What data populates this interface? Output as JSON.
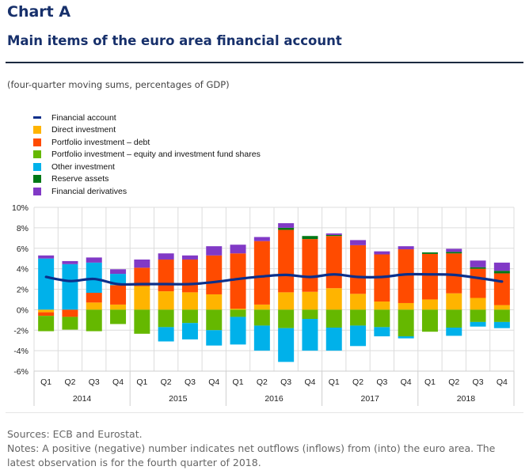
{
  "header": {
    "title": "Chart A",
    "subtitle": "Main items of the euro area financial account",
    "units": "(four-quarter moving sums, percentages of GDP)"
  },
  "footer": {
    "sources": "Sources: ECB and Eurostat.",
    "notes": "Notes: A positive (negative) number indicates net outflows (inflows) from (into) the euro area. The latest observation is for the fourth quarter of 2018."
  },
  "chart_data": {
    "type": "bar",
    "stacked": true,
    "title": "Main items of the euro area financial account",
    "ylabel": "",
    "xlabel": "",
    "ylim": [
      -6,
      10
    ],
    "yticks": [
      -6,
      -4,
      -2,
      0,
      2,
      4,
      6,
      8,
      10
    ],
    "ytick_labels": [
      "-6%",
      "-4%",
      "-2%",
      "0%",
      "2%",
      "4%",
      "6%",
      "8%",
      "10%"
    ],
    "grid": true,
    "legend_position": "top-left",
    "categories": [
      "Q1",
      "Q2",
      "Q3",
      "Q4",
      "Q1",
      "Q2",
      "Q3",
      "Q4",
      "Q1",
      "Q2",
      "Q3",
      "Q4",
      "Q1",
      "Q2",
      "Q3",
      "Q4",
      "Q1",
      "Q2",
      "Q3",
      "Q4"
    ],
    "years": [
      {
        "label": "2014",
        "quarters": 4
      },
      {
        "label": "2015",
        "quarters": 4
      },
      {
        "label": "2016",
        "quarters": 4
      },
      {
        "label": "2017",
        "quarters": 4
      },
      {
        "label": "2018",
        "quarters": 4
      }
    ],
    "series": [
      {
        "name": "Financial account",
        "kind": "line",
        "color": "#0b2f8a",
        "values": [
          3.2,
          2.8,
          3.0,
          2.5,
          2.5,
          2.5,
          2.5,
          2.7,
          3.0,
          3.25,
          3.4,
          3.2,
          3.45,
          3.2,
          3.2,
          3.45,
          3.45,
          3.4,
          3.1,
          2.75
        ]
      },
      {
        "name": "Direct investment",
        "kind": "bar",
        "color": "#ffb400",
        "values": [
          -0.25,
          0.0,
          0.7,
          0.5,
          2.3,
          1.8,
          1.7,
          1.5,
          0.1,
          0.5,
          1.7,
          1.75,
          2.1,
          1.55,
          0.8,
          0.65,
          1.0,
          1.6,
          1.15,
          0.45
        ]
      },
      {
        "name": "Portfolio investment – debt",
        "kind": "bar",
        "color": "#ff4b00",
        "values": [
          -0.35,
          -0.7,
          0.95,
          1.9,
          1.8,
          3.1,
          3.2,
          3.8,
          5.4,
          6.2,
          6.1,
          5.15,
          5.1,
          4.75,
          4.6,
          5.25,
          4.45,
          3.9,
          2.85,
          3.1
        ]
      },
      {
        "name": "Portfolio investment – equity and investment fund shares",
        "kind": "bar",
        "color": "#65b800",
        "values": [
          -1.5,
          -1.25,
          -2.1,
          -1.4,
          -2.35,
          -1.7,
          -1.3,
          -2.0,
          -0.7,
          -1.55,
          -1.8,
          -0.9,
          -1.75,
          -1.55,
          -1.7,
          -2.6,
          -2.15,
          -1.75,
          -1.2,
          -1.2
        ]
      },
      {
        "name": "Other investment",
        "kind": "bar",
        "color": "#00b1ea",
        "values_positive": [
          5.0,
          4.45,
          2.95,
          1.1,
          0,
          0,
          0,
          0,
          0,
          0,
          0,
          0,
          0,
          0,
          0,
          0,
          0,
          0,
          0,
          0
        ],
        "values_negative": [
          0,
          0,
          0,
          0,
          0,
          -1.4,
          -1.6,
          -1.5,
          -2.7,
          -2.45,
          -3.3,
          -3.1,
          -2.25,
          -2.0,
          -0.9,
          -0.2,
          0,
          -0.8,
          -0.45,
          -0.6
        ]
      },
      {
        "name": "Reserve assets",
        "kind": "bar",
        "color": "#007816",
        "values": [
          0,
          0,
          0,
          0,
          0,
          0,
          0,
          0,
          0,
          0,
          0.2,
          0.3,
          0.1,
          0,
          0,
          0,
          0.15,
          0.15,
          0.15,
          0.25
        ]
      },
      {
        "name": "Financial derivatives",
        "kind": "bar",
        "color": "#8139c6",
        "values": [
          0.3,
          0.3,
          0.5,
          0.45,
          0.8,
          0.6,
          0.4,
          0.9,
          0.85,
          0.4,
          0.45,
          0,
          0.15,
          0.5,
          0.3,
          0.3,
          0,
          0.3,
          0.65,
          0.8
        ]
      }
    ]
  }
}
